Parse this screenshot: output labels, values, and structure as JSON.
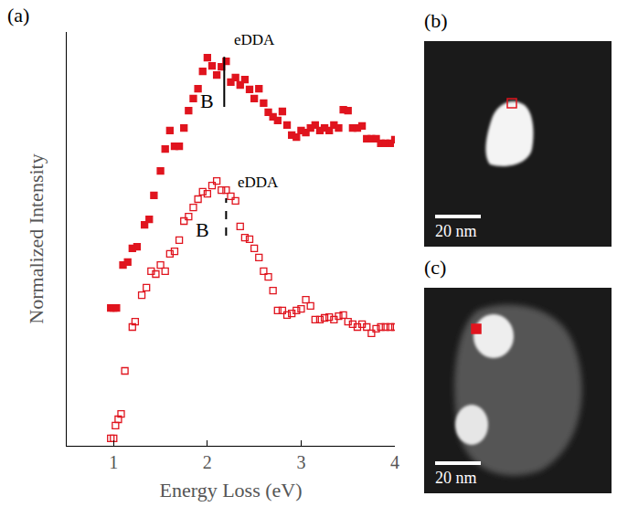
{
  "chart_data": {
    "type": "scatter",
    "panel": "(a)",
    "xlabel": "Energy Loss (eV)",
    "ylabel": "Normalized Intensity",
    "xlim": [
      0.5,
      4
    ],
    "xticks": [
      1,
      2,
      3,
      4
    ],
    "ylim": [
      0,
      100
    ],
    "yticks": [],
    "tick_labels": "x",
    "grid": false,
    "series": [
      {
        "color": "#e0141e",
        "marker": "square",
        "x": [
          0.97,
          1.0,
          1.03,
          1.1,
          1.15,
          1.2,
          1.25,
          1.33,
          1.38,
          1.43,
          1.5,
          1.55,
          1.6,
          1.65,
          1.7,
          1.75,
          1.8,
          1.85,
          1.9,
          1.95,
          2.0,
          2.05,
          2.1,
          2.15,
          2.2,
          2.25,
          2.3,
          2.35,
          2.4,
          2.45,
          2.5,
          2.55,
          2.6,
          2.65,
          2.7,
          2.75,
          2.8,
          2.85,
          2.9,
          2.95,
          3.0,
          3.05,
          3.1,
          3.15,
          3.2,
          3.25,
          3.3,
          3.35,
          3.4,
          3.45,
          3.5,
          3.55,
          3.6,
          3.65,
          3.7,
          3.75,
          3.8,
          3.85,
          3.9,
          3.95,
          4.0
        ],
        "values": [
          33.3,
          33.3,
          33.3,
          43.7,
          44.4,
          47.7,
          48.1,
          53.4,
          54.7,
          60.5,
          66.4,
          71.7,
          76.2,
          72.4,
          72.4,
          76.8,
          81.0,
          83.9,
          86.3,
          90.5,
          93.8,
          91.8,
          89.6,
          91.6,
          92.9,
          87.9,
          89.0,
          87.2,
          88.5,
          86.1,
          83.9,
          86.3,
          82.8,
          80.6,
          79.5,
          78.6,
          80.8,
          77.5,
          75.1,
          74.6,
          76.2,
          75.7,
          76.8,
          77.5,
          76.2,
          76.8,
          76.2,
          77.5,
          76.8,
          81.2,
          81.0,
          76.8,
          76.8,
          77.3,
          74.2,
          74.2,
          74.2,
          73.1,
          73.1,
          73.1,
          74.0
        ]
      },
      {
        "color": "#e0141e",
        "marker": "square-open",
        "x": [
          0.97,
          1.0,
          1.02,
          1.05,
          1.08,
          1.12,
          1.2,
          1.23,
          1.3,
          1.35,
          1.4,
          1.45,
          1.5,
          1.55,
          1.6,
          1.65,
          1.7,
          1.75,
          1.8,
          1.85,
          1.9,
          1.95,
          2.0,
          2.05,
          2.1,
          2.15,
          2.2,
          2.25,
          2.3,
          2.35,
          2.4,
          2.45,
          2.5,
          2.55,
          2.6,
          2.65,
          2.7,
          2.75,
          2.8,
          2.85,
          2.9,
          2.95,
          3.0,
          3.05,
          3.1,
          3.15,
          3.2,
          3.25,
          3.3,
          3.35,
          3.4,
          3.45,
          3.5,
          3.55,
          3.6,
          3.65,
          3.7,
          3.75,
          3.8,
          3.85,
          3.9,
          3.95,
          4.0
        ],
        "values": [
          1.8,
          1.8,
          4.9,
          6.4,
          7.7,
          18.1,
          28.7,
          30.0,
          36.4,
          38.2,
          42.2,
          41.5,
          43.7,
          42.2,
          46.4,
          47.0,
          49.7,
          54.3,
          55.4,
          57.6,
          59.6,
          61.4,
          60.9,
          62.9,
          64.0,
          61.8,
          61.8,
          60.3,
          59.2,
          53.0,
          50.3,
          49.9,
          47.7,
          45.5,
          42.2,
          40.8,
          37.5,
          32.7,
          32.7,
          31.6,
          32.0,
          32.7,
          33.1,
          35.3,
          33.8,
          30.5,
          30.5,
          30.9,
          31.1,
          30.5,
          31.3,
          31.6,
          30.0,
          29.4,
          28.7,
          29.4,
          28.7,
          27.2,
          28.3,
          28.7,
          28.7,
          28.7,
          28.7
        ]
      }
    ],
    "vlines": [
      {
        "x": 2.18,
        "y0": 81.9,
        "y1": 94.0,
        "line_style": "solid"
      },
      {
        "x": 2.2,
        "y0": 50.8,
        "y1": 59.8,
        "line_style": "dashed"
      }
    ],
    "annotations": [
      {
        "text": "eDDA",
        "x": 2.5,
        "y": 98.2
      },
      {
        "text": "B",
        "x": 2.0,
        "y": 83.4
      },
      {
        "text": "eDDA",
        "x": 2.54,
        "y": 63.6
      },
      {
        "text": "B",
        "x": 1.95,
        "y": 52.1
      }
    ]
  },
  "images": [
    {
      "label": "(b)",
      "scale_bar": "20 nm",
      "marker": "square-open",
      "color": "#e0141e"
    },
    {
      "label": "(c)",
      "scale_bar": "20 nm",
      "marker": "square",
      "color": "#e0141e"
    }
  ]
}
